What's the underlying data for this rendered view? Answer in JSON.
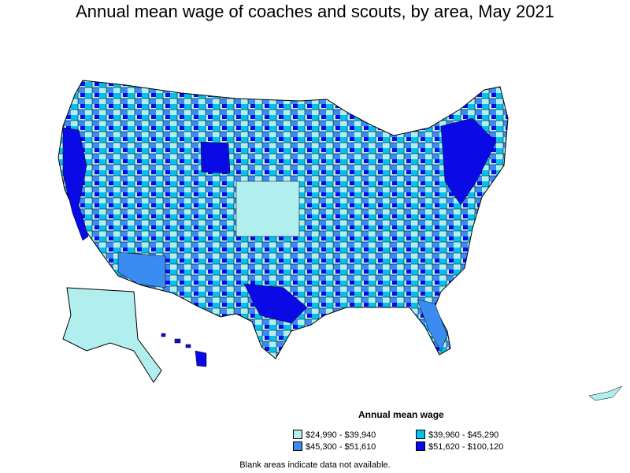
{
  "title": "Annual mean wage of coaches and scouts, by area, May 2021",
  "legend": {
    "title": "Annual mean wage",
    "items": [
      {
        "label": "$24,990 - $39,940",
        "color": "#b1eeee"
      },
      {
        "label": "$39,960 - $45,290",
        "color": "#05bff0"
      },
      {
        "label": "$45,300 - $51,610",
        "color": "#3a8cf0"
      },
      {
        "label": "$51,620 - $100,120",
        "color": "#0a0ae6"
      }
    ]
  },
  "note": "Blank areas indicate data not available."
}
